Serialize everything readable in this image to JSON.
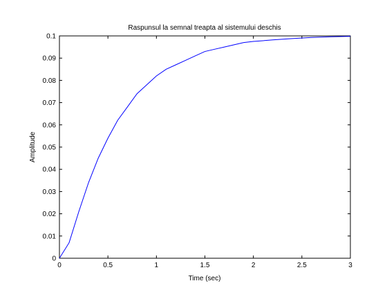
{
  "chart_data": {
    "type": "line",
    "title": "Raspunsul la semnal treapta al sistemului deschis",
    "xlabel": "Time (sec)",
    "ylabel": "Amplitude",
    "xlim": [
      0,
      3
    ],
    "ylim": [
      0,
      0.1
    ],
    "grid": false,
    "line_color": "#0000ff",
    "axes_color": "#000000",
    "xticks": [
      0,
      0.5,
      1,
      1.5,
      2,
      2.5,
      3
    ],
    "xtick_labels": [
      "0",
      "0.5",
      "1",
      "1.5",
      "2",
      "2.5",
      "3"
    ],
    "yticks": [
      0,
      0.01,
      0.02,
      0.03,
      0.04,
      0.05,
      0.06,
      0.07,
      0.08,
      0.09,
      0.1
    ],
    "ytick_labels": [
      "0",
      "0.01",
      "0.02",
      "0.03",
      "0.04",
      "0.05",
      "0.06",
      "0.07",
      "0.08",
      "0.09",
      "0.1"
    ],
    "series": [
      {
        "x": [
          0,
          0.1,
          0.2,
          0.3,
          0.4,
          0.5,
          0.6,
          0.7,
          0.8,
          0.9,
          1.0,
          1.1,
          1.2,
          1.3,
          1.4,
          1.5,
          1.6,
          1.7,
          1.8,
          1.9,
          2.0,
          2.2,
          2.4,
          2.6,
          2.8,
          3.0
        ],
        "values": [
          0,
          0.007,
          0.021,
          0.034,
          0.045,
          0.054,
          0.062,
          0.068,
          0.074,
          0.078,
          0.082,
          0.085,
          0.087,
          0.089,
          0.091,
          0.093,
          0.094,
          0.095,
          0.096,
          0.097,
          0.0975,
          0.0982,
          0.0988,
          0.0993,
          0.0996,
          0.0998
        ]
      }
    ]
  }
}
